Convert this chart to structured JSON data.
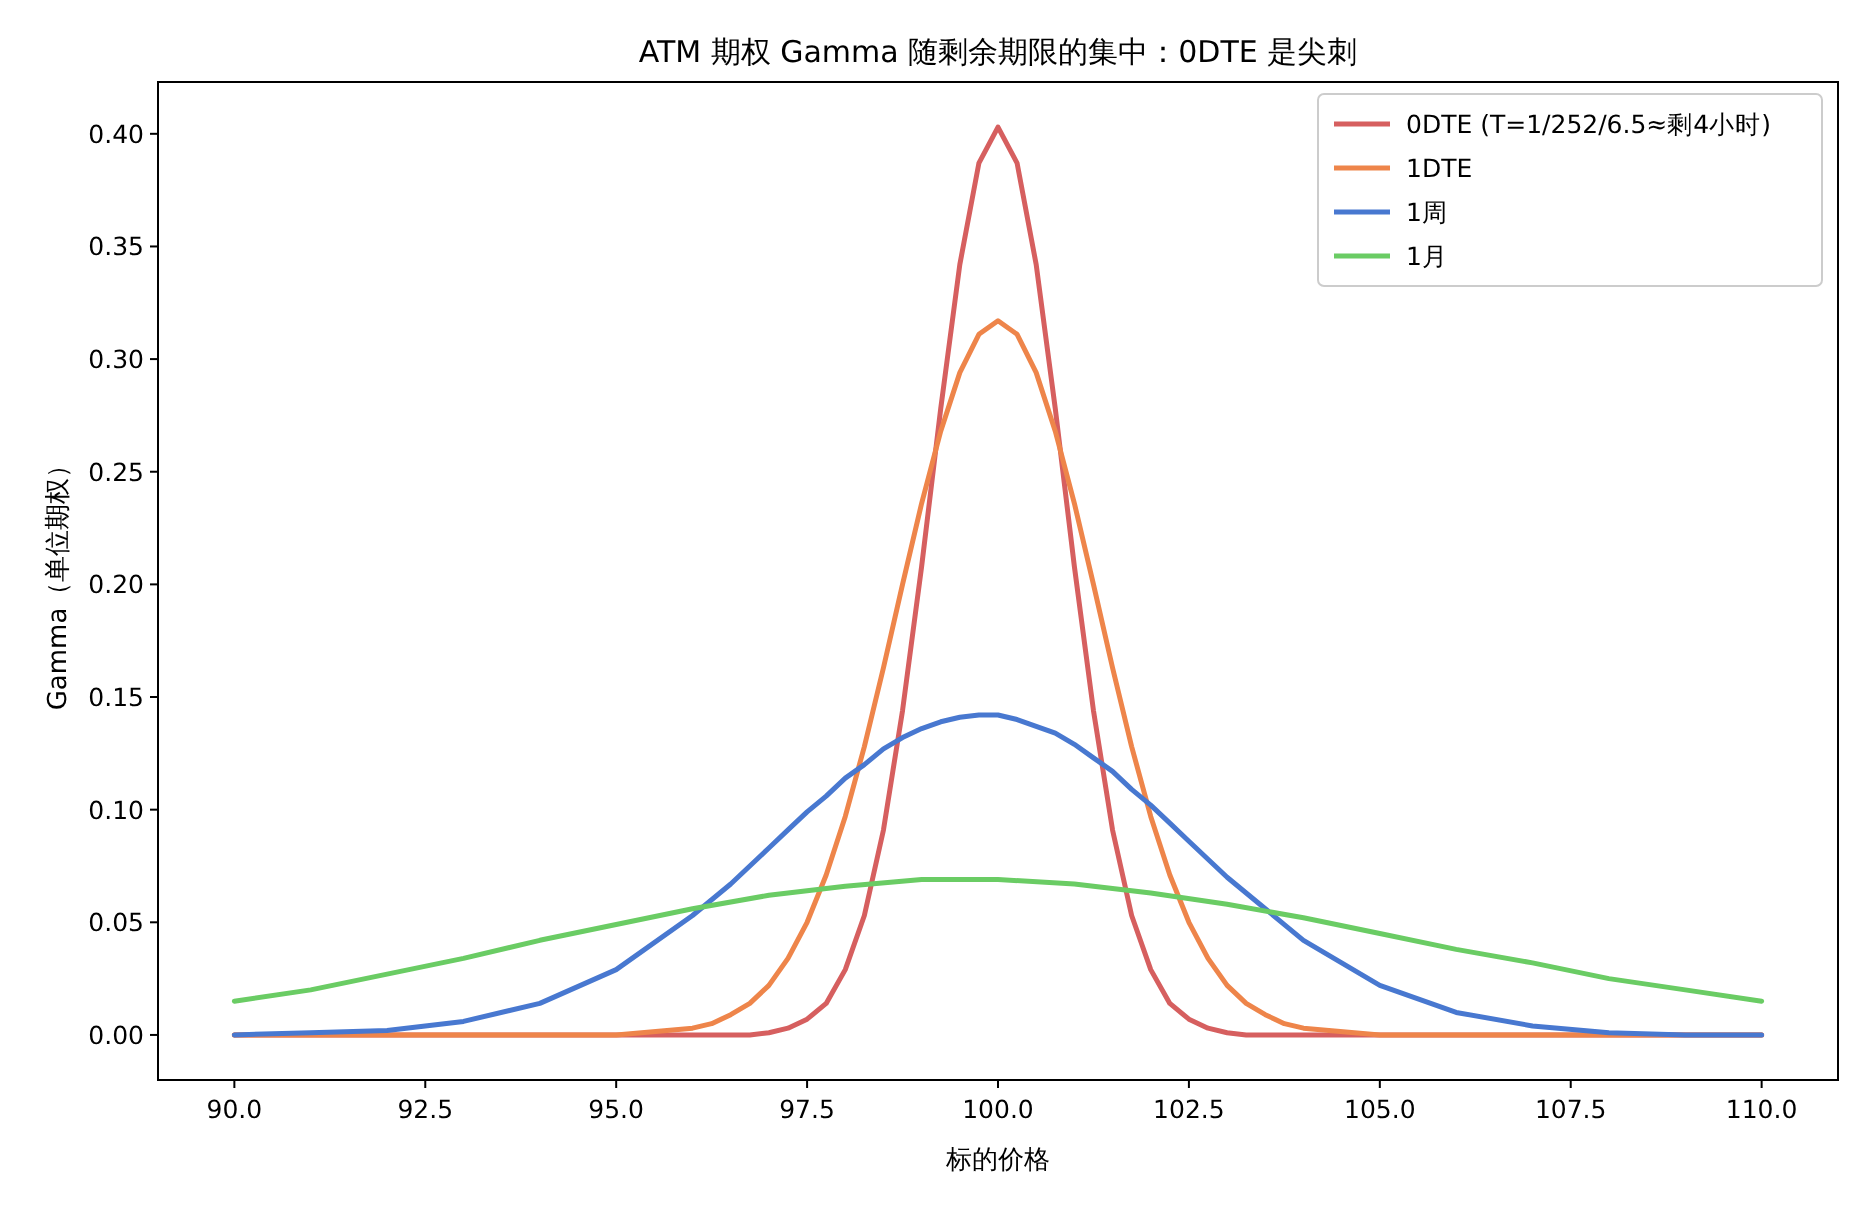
{
  "chart_data": {
    "type": "line",
    "title": "ATM 期权 Gamma 随剩余期限的集中：0DTE 是尖刺",
    "xlabel": "标的价格",
    "ylabel": "Gamma（单位期权）",
    "x": [
      90,
      91,
      92,
      93,
      94,
      95,
      96,
      96.25,
      96.5,
      96.75,
      97,
      97.25,
      97.5,
      97.75,
      98,
      98.25,
      98.5,
      98.75,
      99,
      99.25,
      99.5,
      99.75,
      100,
      100.25,
      100.5,
      100.75,
      101,
      101.25,
      101.5,
      101.75,
      102,
      102.25,
      102.5,
      102.75,
      103,
      103.25,
      103.5,
      103.75,
      104,
      105,
      106,
      107,
      108,
      109,
      110
    ],
    "series": [
      {
        "name": "0DTE (T=1/252/6.5≈剩4小时)",
        "color": "#d65f5f",
        "values": [
          0,
          0,
          0,
          0,
          0,
          0,
          0,
          0,
          0,
          0,
          0.001,
          0.003,
          0.007,
          0.014,
          0.029,
          0.053,
          0.091,
          0.144,
          0.208,
          0.278,
          0.342,
          0.387,
          0.403,
          0.387,
          0.342,
          0.278,
          0.208,
          0.144,
          0.091,
          0.053,
          0.029,
          0.014,
          0.007,
          0.003,
          0.001,
          0,
          0,
          0,
          0,
          0,
          0,
          0,
          0,
          0,
          0
        ]
      },
      {
        "name": "1DTE",
        "color": "#ee854a",
        "values": [
          0,
          0,
          0,
          0,
          0,
          0,
          0.003,
          0.005,
          0.009,
          0.014,
          0.022,
          0.034,
          0.05,
          0.071,
          0.097,
          0.128,
          0.163,
          0.2,
          0.236,
          0.268,
          0.294,
          0.311,
          0.317,
          0.311,
          0.294,
          0.268,
          0.236,
          0.2,
          0.163,
          0.128,
          0.097,
          0.071,
          0.05,
          0.034,
          0.022,
          0.014,
          0.009,
          0.005,
          0.003,
          0,
          0,
          0,
          0,
          0,
          0
        ]
      },
      {
        "name": "1周",
        "color": "#4878d0",
        "values": [
          0,
          0.001,
          0.002,
          0.006,
          0.014,
          0.029,
          0.053,
          0.06,
          0.067,
          0.075,
          0.083,
          0.091,
          0.099,
          0.106,
          0.114,
          0.12,
          0.127,
          0.132,
          0.136,
          0.139,
          0.141,
          0.142,
          0.142,
          0.14,
          0.137,
          0.134,
          0.129,
          0.123,
          0.117,
          0.109,
          0.102,
          0.094,
          0.086,
          0.078,
          0.07,
          0.063,
          0.056,
          0.049,
          0.042,
          0.022,
          0.01,
          0.004,
          0.001,
          0,
          0
        ]
      },
      {
        "name": "1月",
        "color": "#6acc64",
        "x": [
          90,
          91,
          92,
          93,
          94,
          95,
          96,
          97,
          98,
          99,
          100,
          101,
          102,
          103,
          104,
          105,
          106,
          107,
          108,
          109,
          110
        ],
        "values": [
          0.015,
          0.02,
          0.027,
          0.034,
          0.042,
          0.049,
          0.056,
          0.062,
          0.066,
          0.069,
          0.069,
          0.067,
          0.063,
          0.058,
          0.052,
          0.045,
          0.038,
          0.032,
          0.025,
          0.02,
          0.015
        ]
      }
    ],
    "xlim": [
      89,
      111
    ],
    "ylim": [
      -0.02,
      0.423
    ],
    "xticks": [
      {
        "value": 90,
        "label": "90.0"
      },
      {
        "value": 92.5,
        "label": "92.5"
      },
      {
        "value": 95,
        "label": "95.0"
      },
      {
        "value": 97.5,
        "label": "97.5"
      },
      {
        "value": 100,
        "label": "100.0"
      },
      {
        "value": 102.5,
        "label": "102.5"
      },
      {
        "value": 105,
        "label": "105.0"
      },
      {
        "value": 107.5,
        "label": "107.5"
      },
      {
        "value": 110,
        "label": "110.0"
      }
    ],
    "yticks": [
      {
        "value": 0,
        "label": "0.00"
      },
      {
        "value": 0.05,
        "label": "0.05"
      },
      {
        "value": 0.1,
        "label": "0.10"
      },
      {
        "value": 0.15,
        "label": "0.15"
      },
      {
        "value": 0.2,
        "label": "0.20"
      },
      {
        "value": 0.25,
        "label": "0.25"
      },
      {
        "value": 0.3,
        "label": "0.30"
      },
      {
        "value": 0.35,
        "label": "0.35"
      },
      {
        "value": 0.4,
        "label": "0.40"
      }
    ],
    "grid": false,
    "legend": "top right"
  }
}
